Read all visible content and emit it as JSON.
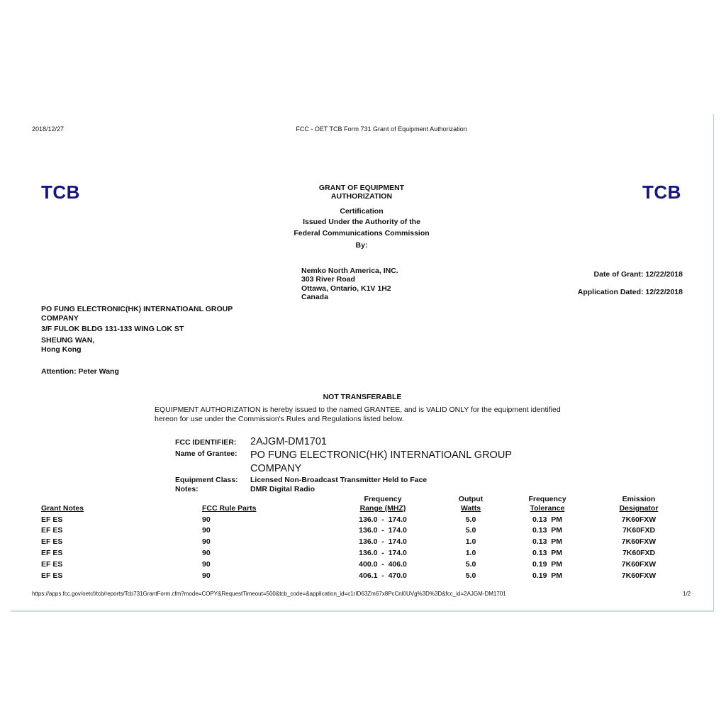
{
  "header": {
    "date": "2018/12/27",
    "title": "FCC - OET TCB Form 731 Grant of Equipment Authorization"
  },
  "logo_text": "TCB",
  "heading": {
    "line1": "GRANT OF EQUIPMENT",
    "line2": "AUTHORIZATION",
    "line3": "Certification",
    "line4": "Issued Under the Authority of the",
    "line5": "Federal Communications Commission",
    "line6": "By:"
  },
  "issuer": {
    "name": "Nemko North America, INC.",
    "street": "303 River Road",
    "city": "Ottawa, Ontario, K1V 1H2",
    "country": "Canada"
  },
  "dates": {
    "grant": "Date of Grant: 12/22/2018",
    "application": "Application Dated: 12/22/2018"
  },
  "grantee_address": {
    "line1": "PO FUNG ELECTRONIC(HK) INTERNATIOANL GROUP",
    "line2": "COMPANY",
    "line3": "3/F FULOK BLDG 131-133 WING LOK ST",
    "line4": "SHEUNG WAN,",
    "line5": "Hong Kong",
    "attention": "Attention: Peter Wang"
  },
  "notice": {
    "title": "NOT TRANSFERABLE",
    "line1": "EQUIPMENT AUTHORIZATION is hereby issued to the named GRANTEE, and is VALID ONLY for the equipment identified",
    "line2": "hereon for use under the Commission's Rules and Regulations listed below."
  },
  "details": {
    "fcc_id_label": "FCC IDENTIFIER:",
    "fcc_id": "2AJGM-DM1701",
    "grantee_label": "Name of Grantee:",
    "grantee_1": "PO FUNG ELECTRONIC(HK) INTERNATIOANL GROUP",
    "grantee_2": "COMPANY",
    "class_label": "Equipment Class:",
    "class": "Licensed Non-Broadcast Transmitter Held to Face",
    "notes_label": "Notes:",
    "notes": "DMR Digital Radio"
  },
  "table": {
    "headers": [
      {
        "top": "",
        "bottom": "Grant Notes"
      },
      {
        "top": "",
        "bottom": "FCC Rule Parts"
      },
      {
        "top": "Frequency",
        "bottom": "Range (MHZ)"
      },
      {
        "top": "Output",
        "bottom": "Watts"
      },
      {
        "top": "Frequency",
        "bottom": "Tolerance"
      },
      {
        "top": "Emission",
        "bottom": "Designator"
      }
    ],
    "rows": [
      [
        "EF ES",
        "90",
        "136.0  -  174.0",
        "5.0",
        "0.13  PM",
        "7K60FXW"
      ],
      [
        "EF ES",
        "90",
        "136.0  -  174.0",
        "5.0",
        "0.13  PM",
        "7K60FXD"
      ],
      [
        "EF ES",
        "90",
        "136.0  -  174.0",
        "1.0",
        "0.13  PM",
        "7K60FXW"
      ],
      [
        "EF ES",
        "90",
        "136.0  -  174.0",
        "1.0",
        "0.13  PM",
        "7K60FXD"
      ],
      [
        "EF ES",
        "90",
        "400.0  -  406.0",
        "5.0",
        "0.19  PM",
        "7K60FXW"
      ],
      [
        "EF ES",
        "90",
        "406.1  -  470.0",
        "5.0",
        "0.19  PM",
        "7K60FXW"
      ]
    ]
  },
  "footer": {
    "url": "https://apps.fcc.gov/oetcf/tcb/reports/Tcb731GrantForm.cfm?mode=COPY&RequestTimeout=500&tcb_code=&application_id=c1rID63Zm67x8PcCnl0UVg%3D%3D&fcc_id=2AJGM-DM1701",
    "page": "1/2"
  },
  "colors": {
    "logo": "#14148c"
  }
}
